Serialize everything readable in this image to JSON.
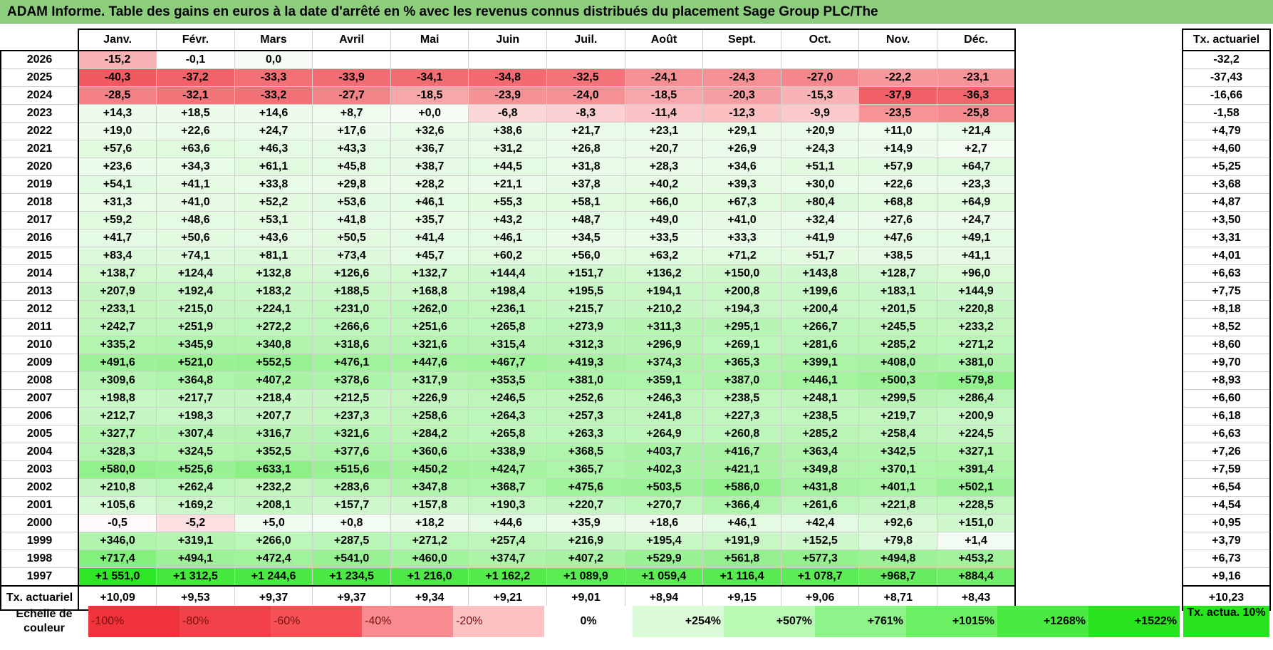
{
  "title": "ADAM Informe. Table des gains en euros à la date d'arrêté en % avec les revenus connus distribués du placement Sage Group PLC/The",
  "months": [
    "Janv.",
    "Févr.",
    "Mars",
    "Avril",
    "Mai",
    "Juin",
    "Juil.",
    "Août",
    "Sept.",
    "Oct.",
    "Nov.",
    "Déc."
  ],
  "side_header": "Tx. actuariel",
  "rows": [
    {
      "year": "2026",
      "cells": [
        "-15,2",
        "-0,1",
        "0,0",
        "",
        "",
        "",
        "",
        "",
        "",
        "",
        "",
        ""
      ],
      "tx": "-32,2"
    },
    {
      "year": "2025",
      "cells": [
        "-40,3",
        "-37,2",
        "-33,3",
        "-33,9",
        "-34,1",
        "-34,8",
        "-32,5",
        "-24,1",
        "-24,3",
        "-27,0",
        "-22,2",
        "-23,1"
      ],
      "tx": "-37,43"
    },
    {
      "year": "2024",
      "cells": [
        "-28,5",
        "-32,1",
        "-33,2",
        "-27,7",
        "-18,5",
        "-23,9",
        "-24,0",
        "-18,5",
        "-20,3",
        "-15,3",
        "-37,9",
        "-36,3"
      ],
      "tx": "-16,66"
    },
    {
      "year": "2023",
      "cells": [
        "+14,3",
        "+18,5",
        "+14,6",
        "+8,7",
        "+0,0",
        "-6,8",
        "-8,3",
        "-11,4",
        "-12,3",
        "-9,9",
        "-23,5",
        "-25,8"
      ],
      "tx": "-1,58"
    },
    {
      "year": "2022",
      "cells": [
        "+19,0",
        "+22,6",
        "+24,7",
        "+17,6",
        "+32,6",
        "+38,6",
        "+21,7",
        "+23,1",
        "+29,1",
        "+20,9",
        "+11,0",
        "+21,4"
      ],
      "tx": "+4,79"
    },
    {
      "year": "2021",
      "cells": [
        "+57,6",
        "+63,6",
        "+46,3",
        "+43,3",
        "+36,7",
        "+31,2",
        "+26,8",
        "+20,7",
        "+26,9",
        "+24,3",
        "+14,9",
        "+2,7"
      ],
      "tx": "+4,60"
    },
    {
      "year": "2020",
      "cells": [
        "+23,6",
        "+34,3",
        "+61,1",
        "+45,8",
        "+38,7",
        "+44,5",
        "+31,8",
        "+28,3",
        "+34,6",
        "+51,1",
        "+57,9",
        "+64,7"
      ],
      "tx": "+5,25"
    },
    {
      "year": "2019",
      "cells": [
        "+54,1",
        "+41,1",
        "+33,8",
        "+29,8",
        "+28,2",
        "+21,1",
        "+37,8",
        "+40,2",
        "+39,3",
        "+30,0",
        "+22,6",
        "+23,3"
      ],
      "tx": "+3,68"
    },
    {
      "year": "2018",
      "cells": [
        "+31,3",
        "+41,0",
        "+52,2",
        "+53,6",
        "+46,1",
        "+55,3",
        "+58,1",
        "+66,0",
        "+67,3",
        "+80,4",
        "+68,8",
        "+64,9"
      ],
      "tx": "+4,87"
    },
    {
      "year": "2017",
      "cells": [
        "+59,2",
        "+48,6",
        "+53,1",
        "+41,8",
        "+35,7",
        "+43,2",
        "+48,7",
        "+49,0",
        "+41,0",
        "+32,4",
        "+27,6",
        "+24,7"
      ],
      "tx": "+3,50"
    },
    {
      "year": "2016",
      "cells": [
        "+41,7",
        "+50,6",
        "+43,6",
        "+50,5",
        "+41,4",
        "+46,1",
        "+34,5",
        "+33,5",
        "+33,3",
        "+41,9",
        "+47,6",
        "+49,1"
      ],
      "tx": "+3,31"
    },
    {
      "year": "2015",
      "cells": [
        "+83,4",
        "+74,1",
        "+81,1",
        "+73,4",
        "+45,7",
        "+60,2",
        "+56,0",
        "+63,2",
        "+71,2",
        "+51,7",
        "+38,5",
        "+41,1"
      ],
      "tx": "+4,01"
    },
    {
      "year": "2014",
      "cells": [
        "+138,7",
        "+124,4",
        "+132,8",
        "+126,6",
        "+132,7",
        "+144,4",
        "+151,7",
        "+136,2",
        "+150,0",
        "+143,8",
        "+128,7",
        "+96,0"
      ],
      "tx": "+6,63"
    },
    {
      "year": "2013",
      "cells": [
        "+207,9",
        "+192,4",
        "+183,2",
        "+188,5",
        "+168,8",
        "+198,4",
        "+195,5",
        "+194,1",
        "+200,8",
        "+199,6",
        "+183,1",
        "+144,9"
      ],
      "tx": "+7,75"
    },
    {
      "year": "2012",
      "cells": [
        "+233,1",
        "+215,0",
        "+224,1",
        "+231,0",
        "+262,0",
        "+236,1",
        "+215,7",
        "+210,2",
        "+194,3",
        "+200,4",
        "+201,5",
        "+220,8"
      ],
      "tx": "+8,18"
    },
    {
      "year": "2011",
      "cells": [
        "+242,7",
        "+251,9",
        "+272,2",
        "+266,6",
        "+251,6",
        "+265,8",
        "+273,9",
        "+311,3",
        "+295,1",
        "+266,7",
        "+245,5",
        "+233,2"
      ],
      "tx": "+8,52"
    },
    {
      "year": "2010",
      "cells": [
        "+335,2",
        "+345,9",
        "+340,8",
        "+318,6",
        "+321,6",
        "+315,4",
        "+312,3",
        "+296,9",
        "+269,1",
        "+281,6",
        "+285,2",
        "+271,2"
      ],
      "tx": "+8,60"
    },
    {
      "year": "2009",
      "cells": [
        "+491,6",
        "+521,0",
        "+552,5",
        "+476,1",
        "+447,6",
        "+467,7",
        "+419,3",
        "+374,3",
        "+365,3",
        "+399,1",
        "+408,0",
        "+381,0"
      ],
      "tx": "+9,70"
    },
    {
      "year": "2008",
      "cells": [
        "+309,6",
        "+364,8",
        "+407,2",
        "+378,6",
        "+317,9",
        "+353,5",
        "+381,0",
        "+359,1",
        "+387,0",
        "+446,1",
        "+500,3",
        "+579,8"
      ],
      "tx": "+8,93"
    },
    {
      "year": "2007",
      "cells": [
        "+198,8",
        "+217,7",
        "+218,4",
        "+212,5",
        "+226,9",
        "+246,5",
        "+252,6",
        "+246,3",
        "+238,5",
        "+248,1",
        "+299,5",
        "+286,4"
      ],
      "tx": "+6,60"
    },
    {
      "year": "2006",
      "cells": [
        "+212,7",
        "+198,3",
        "+207,7",
        "+237,3",
        "+258,6",
        "+264,3",
        "+257,3",
        "+241,8",
        "+227,3",
        "+238,5",
        "+219,7",
        "+200,9"
      ],
      "tx": "+6,18"
    },
    {
      "year": "2005",
      "cells": [
        "+327,7",
        "+307,4",
        "+316,7",
        "+321,6",
        "+284,2",
        "+265,8",
        "+263,3",
        "+264,9",
        "+260,8",
        "+285,2",
        "+258,4",
        "+224,5"
      ],
      "tx": "+6,63"
    },
    {
      "year": "2004",
      "cells": [
        "+328,3",
        "+324,5",
        "+352,5",
        "+377,6",
        "+360,6",
        "+338,9",
        "+368,5",
        "+403,7",
        "+416,7",
        "+363,4",
        "+342,5",
        "+327,1"
      ],
      "tx": "+7,26"
    },
    {
      "year": "2003",
      "cells": [
        "+580,0",
        "+525,6",
        "+633,1",
        "+515,6",
        "+450,2",
        "+424,7",
        "+365,7",
        "+402,3",
        "+421,1",
        "+349,8",
        "+370,1",
        "+391,4"
      ],
      "tx": "+7,59"
    },
    {
      "year": "2002",
      "cells": [
        "+210,8",
        "+262,4",
        "+232,2",
        "+283,6",
        "+347,8",
        "+368,7",
        "+475,6",
        "+503,5",
        "+586,0",
        "+431,8",
        "+401,1",
        "+502,1"
      ],
      "tx": "+6,54"
    },
    {
      "year": "2001",
      "cells": [
        "+105,6",
        "+169,2",
        "+208,1",
        "+157,7",
        "+157,8",
        "+190,3",
        "+220,7",
        "+270,7",
        "+366,4",
        "+261,6",
        "+221,8",
        "+228,5"
      ],
      "tx": "+4,54"
    },
    {
      "year": "2000",
      "cells": [
        "-0,5",
        "-5,2",
        "+5,0",
        "+0,8",
        "+18,2",
        "+44,6",
        "+35,9",
        "+18,6",
        "+46,1",
        "+42,4",
        "+92,6",
        "+151,0"
      ],
      "tx": "+0,95"
    },
    {
      "year": "1999",
      "cells": [
        "+346,0",
        "+319,1",
        "+266,0",
        "+287,5",
        "+271,2",
        "+257,4",
        "+216,9",
        "+195,4",
        "+191,9",
        "+152,5",
        "+79,8",
        "+1,4"
      ],
      "tx": "+3,79"
    },
    {
      "year": "1998",
      "cells": [
        "+717,4",
        "+494,1",
        "+472,4",
        "+541,0",
        "+460,0",
        "+374,7",
        "+407,2",
        "+529,9",
        "+561,8",
        "+577,3",
        "+494,8",
        "+453,2"
      ],
      "tx": "+6,73"
    },
    {
      "year": "1997",
      "cells": [
        "+1 551,0",
        "+1 312,5",
        "+1 244,6",
        "+1 234,5",
        "+1 216,0",
        "+1 162,2",
        "+1 089,9",
        "+1 059,4",
        "+1 116,4",
        "+1 078,7",
        "+968,7",
        "+884,4"
      ],
      "tx": "+9,16"
    }
  ],
  "footer": {
    "label": "Tx. actuariel",
    "values": [
      "+10,09",
      "+9,53",
      "+9,37",
      "+9,37",
      "+9,34",
      "+9,21",
      "+9,01",
      "+8,94",
      "+9,15",
      "+9,06",
      "+8,71",
      "+8,43"
    ],
    "total": "+10,23"
  },
  "scale": {
    "label": "Echelle de couleur",
    "steps": [
      {
        "label": "-100%",
        "color": "#f0323a"
      },
      {
        "label": "-80%",
        "color": "#f24148"
      },
      {
        "label": "-60%",
        "color": "#f55157"
      },
      {
        "label": "-40%",
        "color": "#f78b8f"
      },
      {
        "label": "-20%",
        "color": "#fbc1c3"
      },
      {
        "label": "0%",
        "color": "#ffffff"
      },
      {
        "label": "+254%",
        "color": "#dcfcd9"
      },
      {
        "label": "+507%",
        "color": "#b8f9b3"
      },
      {
        "label": "+761%",
        "color": "#8ef388"
      },
      {
        "label": "+1015%",
        "color": "#6bf064"
      },
      {
        "label": "+1268%",
        "color": "#4aeb41"
      },
      {
        "label": "+1522%",
        "color": "#28e41e"
      }
    ],
    "side_label": "Tx. actua. 10%",
    "side_color": "#28e41e"
  },
  "colors": {
    "title_bar": "#8cce7c",
    "negative_max": "#f0323a",
    "positive_max": "#28e41e"
  }
}
